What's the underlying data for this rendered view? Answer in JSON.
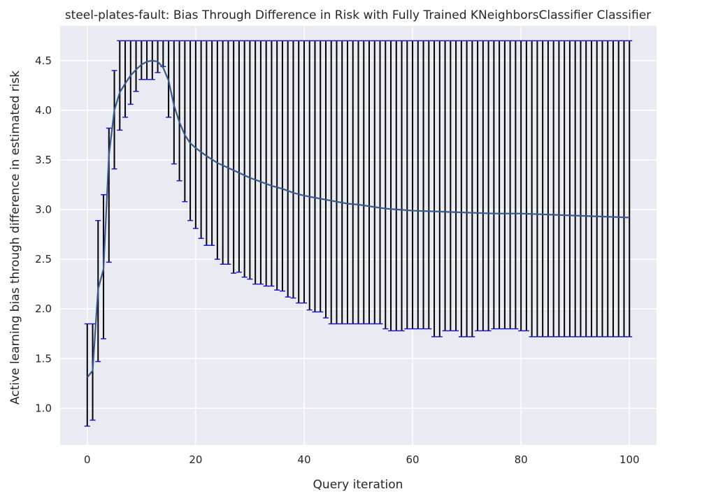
{
  "chart_data": {
    "type": "line",
    "title": "steel-plates-fault: Bias Through Difference in Risk with Fully Trained KNeighborsClassifier Classifier",
    "xlabel": "Query iteration",
    "ylabel": "Active learning bias through difference in estimated risk",
    "xlim": [
      -5,
      105
    ],
    "ylim": [
      0.63,
      4.85
    ],
    "xticks": [
      0,
      20,
      40,
      60,
      80,
      100
    ],
    "xtick_labels": [
      "0",
      "20",
      "40",
      "60",
      "80",
      "100"
    ],
    "yticks": [
      1.0,
      1.5,
      2.0,
      2.5,
      3.0,
      3.5,
      4.0,
      4.5
    ],
    "ytick_labels": [
      "1.0",
      "1.5",
      "2.0",
      "2.5",
      "3.0",
      "3.5",
      "4.0",
      "4.5"
    ],
    "grid": true,
    "legend": "none",
    "colors": {
      "background": "#eaeaf2",
      "grid": "#ffffff",
      "line": "#3a5a8c",
      "errorbar": "#000000",
      "cap": "#1a1ac8"
    },
    "mean_line": {
      "x": [
        0,
        1,
        2,
        3,
        4,
        5,
        6,
        7,
        8,
        9,
        10,
        11,
        12,
        13,
        14,
        15,
        16,
        17,
        18,
        19,
        20,
        22,
        24,
        26,
        28,
        30,
        32,
        34,
        36,
        38,
        40,
        42,
        44,
        46,
        48,
        50,
        55,
        60,
        65,
        70,
        75,
        80,
        85,
        90,
        95,
        100
      ],
      "y": [
        1.31,
        1.38,
        2.2,
        2.4,
        3.55,
        4.0,
        4.18,
        4.27,
        4.35,
        4.41,
        4.46,
        4.49,
        4.5,
        4.49,
        4.43,
        4.3,
        4.05,
        3.88,
        3.75,
        3.67,
        3.62,
        3.54,
        3.47,
        3.42,
        3.37,
        3.32,
        3.28,
        3.24,
        3.21,
        3.17,
        3.14,
        3.12,
        3.1,
        3.08,
        3.06,
        3.05,
        3.01,
        2.99,
        2.98,
        2.97,
        2.96,
        2.96,
        2.95,
        2.94,
        2.93,
        2.92
      ]
    },
    "error_bars": {
      "x": [
        0,
        1,
        2,
        3,
        4,
        5,
        6,
        7,
        8,
        9,
        10,
        11,
        12,
        13,
        14,
        15,
        16,
        17,
        18,
        19,
        20,
        21,
        22,
        23,
        24,
        25,
        26,
        27,
        28,
        29,
        30,
        31,
        32,
        33,
        34,
        35,
        36,
        37,
        38,
        39,
        40,
        41,
        42,
        43,
        44,
        45,
        46,
        47,
        48,
        49,
        50,
        51,
        52,
        53,
        54,
        55,
        56,
        57,
        58,
        59,
        60,
        61,
        62,
        63,
        64,
        65,
        66,
        67,
        68,
        69,
        70,
        71,
        72,
        73,
        74,
        75,
        76,
        77,
        78,
        79,
        80,
        81,
        82,
        83,
        84,
        85,
        86,
        87,
        88,
        89,
        90,
        91,
        92,
        93,
        94,
        95,
        96,
        97,
        98,
        99,
        100
      ],
      "lower": [
        0.82,
        0.88,
        1.47,
        1.7,
        2.47,
        3.41,
        3.8,
        3.93,
        4.06,
        4.19,
        4.31,
        4.31,
        4.31,
        4.38,
        4.44,
        3.93,
        3.46,
        3.29,
        3.08,
        2.89,
        2.81,
        2.71,
        2.64,
        2.64,
        2.5,
        2.45,
        2.45,
        2.36,
        2.37,
        2.32,
        2.3,
        2.25,
        2.25,
        2.23,
        2.23,
        2.19,
        2.18,
        2.12,
        2.11,
        2.06,
        2.06,
        1.99,
        1.97,
        1.97,
        1.91,
        1.85,
        1.85,
        1.85,
        1.85,
        1.85,
        1.85,
        1.85,
        1.85,
        1.85,
        1.85,
        1.8,
        1.78,
        1.78,
        1.78,
        1.8,
        1.8,
        1.8,
        1.8,
        1.8,
        1.72,
        1.72,
        1.78,
        1.78,
        1.78,
        1.72,
        1.72,
        1.72,
        1.78,
        1.78,
        1.78,
        1.8,
        1.8,
        1.8,
        1.8,
        1.8,
        1.78,
        1.78,
        1.72,
        1.72,
        1.72,
        1.72,
        1.72,
        1.72,
        1.72,
        1.72,
        1.72,
        1.72,
        1.72,
        1.72,
        1.72,
        1.72,
        1.72,
        1.72,
        1.72,
        1.72,
        1.72
      ],
      "upper": [
        1.85,
        1.85,
        2.89,
        3.15,
        3.82,
        4.4,
        4.7,
        4.7,
        4.7,
        4.7,
        4.7,
        4.7,
        4.7,
        4.7,
        4.7,
        4.7,
        4.7,
        4.7,
        4.7,
        4.7,
        4.7,
        4.7,
        4.7,
        4.7,
        4.7,
        4.7,
        4.7,
        4.7,
        4.7,
        4.7,
        4.7,
        4.7,
        4.7,
        4.7,
        4.7,
        4.7,
        4.7,
        4.7,
        4.7,
        4.7,
        4.7,
        4.7,
        4.7,
        4.7,
        4.7,
        4.7,
        4.7,
        4.7,
        4.7,
        4.7,
        4.7,
        4.7,
        4.7,
        4.7,
        4.7,
        4.7,
        4.7,
        4.7,
        4.7,
        4.7,
        4.7,
        4.7,
        4.7,
        4.7,
        4.7,
        4.7,
        4.7,
        4.7,
        4.7,
        4.7,
        4.7,
        4.7,
        4.7,
        4.7,
        4.7,
        4.7,
        4.7,
        4.7,
        4.7,
        4.7,
        4.7,
        4.7,
        4.7,
        4.7,
        4.7,
        4.7,
        4.7,
        4.7,
        4.7,
        4.7,
        4.7,
        4.7,
        4.7,
        4.7,
        4.7,
        4.7,
        4.7,
        4.7,
        4.7,
        4.7,
        4.7
      ]
    }
  }
}
